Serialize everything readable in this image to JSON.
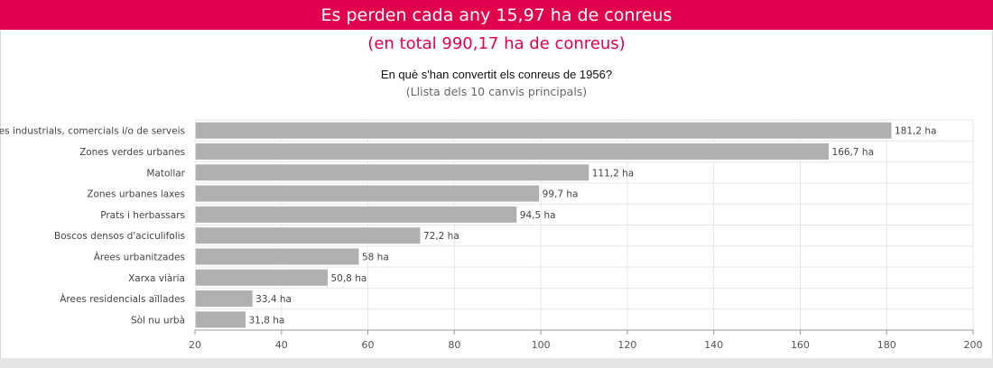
{
  "header": {
    "title": "Es perden cada any 15,97 ha de conreus",
    "subtitle": "(en total 990,17 ha de conreus)"
  },
  "chart_data": {
    "type": "bar",
    "orientation": "horizontal",
    "title": "En què s'han convertit els conreus de 1956?",
    "subtitle": "(Llista dels 10 canvis principals)",
    "categories": [
      "Zones industrials, comercials i/o de serveis",
      "Zones verdes urbanes",
      "Matollar",
      "Zones urbanes laxes",
      "Prats i herbassars",
      "Boscos densos d'aciculifolis",
      "Àrees urbanitzades",
      "Xarxa viària",
      "Àrees residencials aïllades",
      "Sòl nu urbà"
    ],
    "values": [
      181.2,
      166.7,
      111.2,
      99.7,
      94.5,
      72.2,
      58,
      50.8,
      33.4,
      31.8
    ],
    "data_labels": [
      "181,2 ha",
      "166,7 ha",
      "111,2 ha",
      "99,7 ha",
      "94,5 ha",
      "72,2 ha",
      "58 ha",
      "50,8 ha",
      "33,4 ha",
      "31,8 ha"
    ],
    "xlim": [
      20,
      200
    ],
    "x_ticks": [
      20,
      40,
      60,
      80,
      100,
      120,
      140,
      160,
      180,
      200
    ],
    "grid": true,
    "bar_color": "#b0b0b0"
  },
  "colors": {
    "accent": "#e0004d",
    "bar": "#b0b0b0",
    "grid": "#e6e6e6"
  }
}
